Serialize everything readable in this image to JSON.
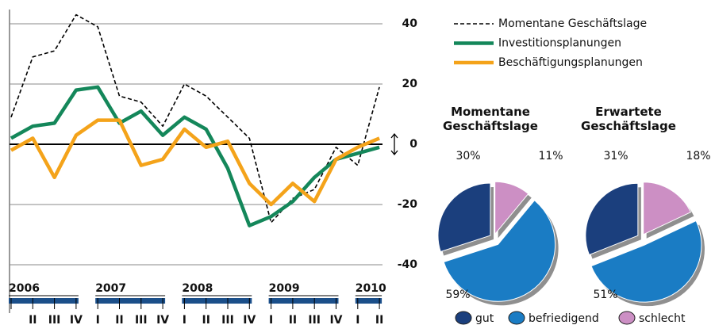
{
  "chart_data": [
    {
      "type": "line",
      "categories": [
        null,
        "II",
        "III",
        "IV",
        "I",
        "II",
        "III",
        "IV",
        "I",
        "II",
        "III",
        "IV",
        "I",
        "II",
        "III",
        "IV",
        "I",
        "II"
      ],
      "years": [
        "2006",
        "2007",
        "2008",
        "2009",
        "2010"
      ],
      "series": [
        {
          "name": "Momentane Geschäftslage",
          "color": "#000000",
          "dashed": true,
          "values": [
            9,
            29,
            31,
            43,
            39,
            16,
            14,
            6,
            20,
            16,
            9,
            2,
            -26,
            -18,
            -15,
            -1,
            -7,
            19
          ]
        },
        {
          "name": "Investitionsplanungen",
          "color": "#14875a",
          "values": [
            2,
            6,
            7,
            18,
            19,
            7,
            11,
            3,
            9,
            5,
            -8,
            -27,
            -24,
            -19,
            -11,
            -5,
            -3,
            -1
          ]
        },
        {
          "name": "Beschäftigungsplanungen",
          "color": "#f4a31a",
          "values": [
            -2,
            2,
            -11,
            3,
            8,
            8,
            -7,
            -5,
            5,
            -1,
            1,
            -13,
            -20,
            -13,
            -19,
            -5,
            -1,
            2
          ]
        }
      ],
      "ylim": [
        -45,
        45
      ],
      "yticks": [
        40,
        20,
        0,
        -20,
        -40
      ],
      "grid": true
    },
    {
      "type": "pie",
      "title": "Momentane Geschäftslage",
      "categories": [
        "gut",
        "befriedigend",
        "schlecht"
      ],
      "colors": [
        "#1b3f7d",
        "#1a7cc4",
        "#cc8fc4"
      ],
      "values": [
        30,
        59,
        11
      ],
      "value_labels": [
        "30%",
        "59%",
        "11%"
      ]
    },
    {
      "type": "pie",
      "title": "Erwartete Geschäftslage",
      "values": [
        31,
        51,
        18
      ],
      "value_labels": [
        "31%",
        "51%",
        "18%"
      ]
    }
  ]
}
